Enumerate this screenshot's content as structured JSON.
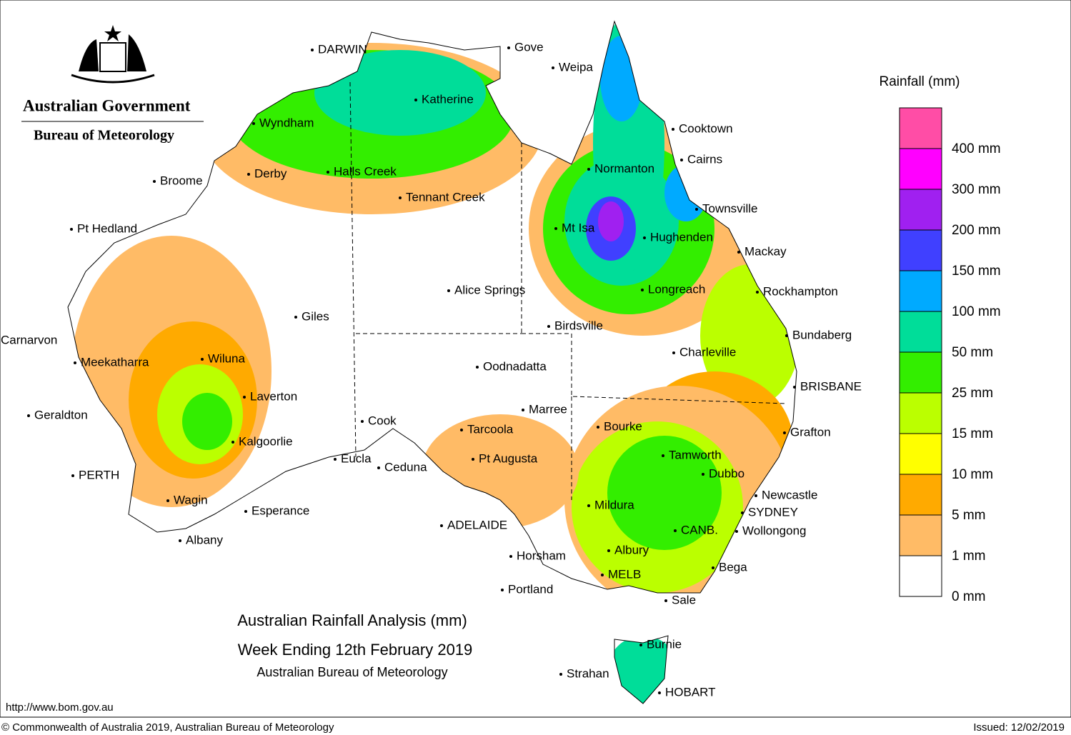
{
  "header": {
    "government": "Australian Government",
    "bureau": "Bureau of Meteorology"
  },
  "title": {
    "line1": "Australian Rainfall Analysis (mm)",
    "line2": "Week Ending 12th February 2019",
    "line3": "Australian Bureau of Meteorology"
  },
  "legend": {
    "title": "Rainfall (mm)",
    "levels": [
      {
        "label": "400 mm",
        "color": "#ff4da6"
      },
      {
        "label": "300 mm",
        "color": "#ff00ff"
      },
      {
        "label": "200 mm",
        "color": "#a020f0"
      },
      {
        "label": "150 mm",
        "color": "#4040ff"
      },
      {
        "label": "100 mm",
        "color": "#00aaff"
      },
      {
        "label": "50 mm",
        "color": "#00dd99"
      },
      {
        "label": "25 mm",
        "color": "#33ee00"
      },
      {
        "label": "15 mm",
        "color": "#bbff00"
      },
      {
        "label": "10 mm",
        "color": "#ffff00"
      },
      {
        "label": "5 mm",
        "color": "#ffaa00"
      },
      {
        "label": "1 mm",
        "color": "#ffbb66"
      },
      {
        "label": "0 mm",
        "color": "#ffffff"
      }
    ]
  },
  "places": [
    "DARWIN",
    "Gove",
    "Weipa",
    "Katherine",
    "Wyndham",
    "Cooktown",
    "Cairns",
    "Normanton",
    "Derby",
    "Halls Creek",
    "Broome",
    "Tennant Creek",
    "Townsville",
    "Pt Hedland",
    "Mt Isa",
    "Hughenden",
    "Mackay",
    "Alice Springs",
    "Longreach",
    "Rockhampton",
    "Giles",
    "Birdsville",
    "Bundaberg",
    "Carnarvon",
    "Charleville",
    "Meekatharra",
    "Wiluna",
    "Oodnadatta",
    "BRISBANE",
    "Laverton",
    "Marree",
    "Geraldton",
    "Cook",
    "Tarcoola",
    "Bourke",
    "Grafton",
    "Kalgoorlie",
    "Tamworth",
    "Eucla",
    "Pt Augusta",
    "Ceduna",
    "Dubbo",
    "PERTH",
    "Newcastle",
    "Wagin",
    "Mildura",
    "Esperance",
    "SYDNEY",
    "ADELAIDE",
    "CANB.",
    "Wollongong",
    "Albany",
    "Albury",
    "Horsham",
    "Bega",
    "MELB",
    "Portland",
    "Sale",
    "Burnie",
    "Strahan",
    "HOBART"
  ],
  "footer": {
    "url": "http://www.bom.gov.au",
    "copyright": "© Commonwealth of Australia 2019, Australian Bureau of Meteorology",
    "issued": "Issued: 12/02/2019"
  }
}
